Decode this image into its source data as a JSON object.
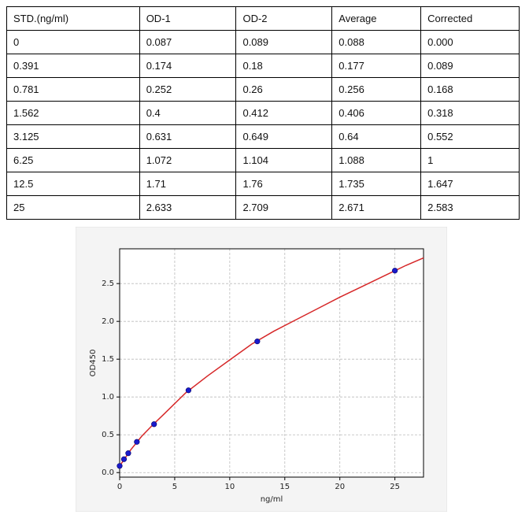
{
  "table": {
    "header": [
      "STD.(ng/ml)",
      "OD-1",
      "OD-2",
      "Average",
      "Corrected"
    ],
    "rows": [
      [
        "0",
        "0.087",
        "0.089",
        "0.088",
        "0.000"
      ],
      [
        "0.391",
        "0.174",
        "0.18",
        "0.177",
        "0.089"
      ],
      [
        "0.781",
        "0.252",
        "0.26",
        "0.256",
        "0.168"
      ],
      [
        "1.562",
        "0.4",
        "0.412",
        "0.406",
        "0.318"
      ],
      [
        "3.125",
        "0.631",
        "0.649",
        "0.64",
        "0.552"
      ],
      [
        "6.25",
        "1.072",
        "1.104",
        "1.088",
        "1"
      ],
      [
        "12.5",
        "1.71",
        "1.76",
        "1.735",
        "1.647"
      ],
      [
        "25",
        "2.633",
        "2.709",
        "2.671",
        "2.583"
      ]
    ]
  },
  "chart_data": {
    "type": "scatter",
    "x_label": "ng/ml",
    "y_label": "OD450",
    "x": [
      0,
      0.391,
      0.781,
      1.562,
      3.125,
      6.25,
      12.5,
      25
    ],
    "series": [
      {
        "color": "#1a1acc",
        "values": [
          0.088,
          0.177,
          0.256,
          0.406,
          0.64,
          1.088,
          1.735,
          2.671
        ]
      }
    ],
    "fit": {
      "color": "#d62728",
      "x": [
        0,
        1,
        2,
        3,
        4,
        6,
        8,
        10,
        12,
        14,
        16,
        18,
        20,
        22,
        24,
        26,
        27.6
      ],
      "values": [
        0.088,
        0.3,
        0.48,
        0.63,
        0.77,
        1.055,
        1.28,
        1.49,
        1.7,
        1.87,
        2.02,
        2.17,
        2.32,
        2.46,
        2.6,
        2.74,
        2.84
      ]
    },
    "xlim": [
      0,
      27.6
    ],
    "ylim": [
      -0.06,
      2.96
    ],
    "xticks": [
      0,
      5,
      10,
      15,
      20,
      25
    ],
    "yticks": [
      {
        "value": 0,
        "label": "0.0"
      },
      0.5,
      {
        "value": 1,
        "label": "1.0"
      },
      1.5,
      {
        "value": 2,
        "label": "2.0"
      },
      2.5
    ],
    "grid": true
  }
}
